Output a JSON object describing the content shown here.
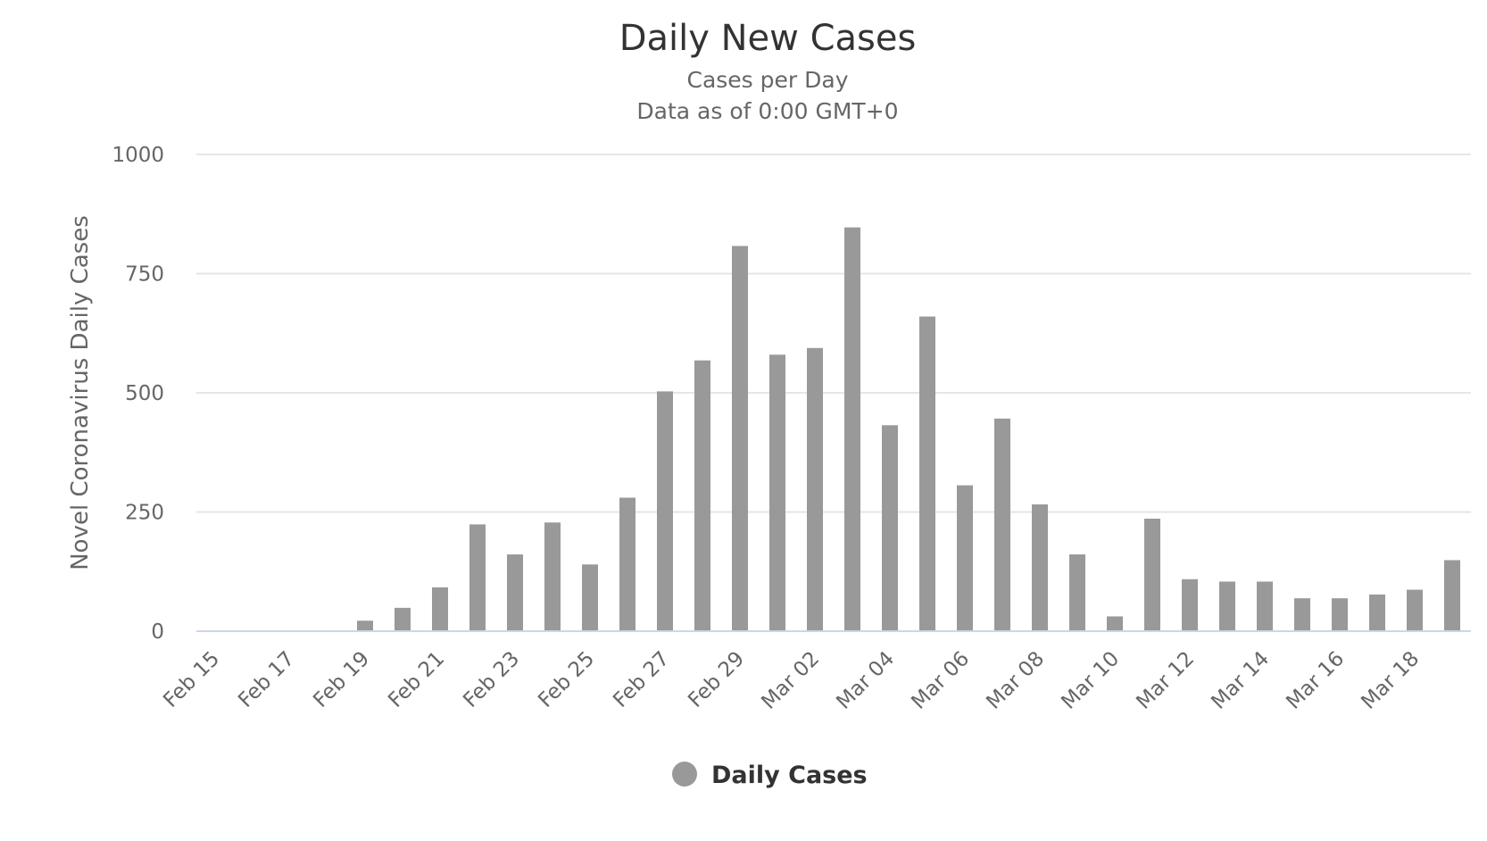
{
  "chart_data": {
    "type": "bar",
    "title": "Daily New Cases",
    "subtitle": [
      "Cases per Day",
      "Data as of 0:00 GMT+0"
    ],
    "ylabel": "Novel Coronavirus Daily Cases",
    "xlabel": "",
    "ylim": [
      0,
      1000
    ],
    "yticks": [
      "0",
      "250",
      "500",
      "750",
      "1000"
    ],
    "ytick_values": [
      0,
      250,
      500,
      750,
      1000
    ],
    "grid": true,
    "legend_position": "bottom-center",
    "bar_color": "#999999",
    "categories": [
      "Feb 15",
      "Feb 16",
      "Feb 17",
      "Feb 18",
      "Feb 19",
      "Feb 20",
      "Feb 21",
      "Feb 22",
      "Feb 23",
      "Feb 24",
      "Feb 25",
      "Feb 26",
      "Feb 27",
      "Feb 28",
      "Feb 29",
      "Mar 01",
      "Mar 02",
      "Mar 03",
      "Mar 04",
      "Mar 05",
      "Mar 06",
      "Mar 07",
      "Mar 08",
      "Mar 09",
      "Mar 10",
      "Mar 11",
      "Mar 12",
      "Mar 13",
      "Mar 14",
      "Mar 15",
      "Mar 16",
      "Mar 17",
      "Mar 18",
      "Mar 19"
    ],
    "tick_labels": [
      "Feb 15",
      "Feb 17",
      "Feb 19",
      "Feb 21",
      "Feb 23",
      "Feb 25",
      "Feb 27",
      "Feb 29",
      "Mar 02",
      "Mar 04",
      "Mar 06",
      "Mar 08",
      "Mar 10",
      "Mar 12",
      "Mar 14",
      "Mar 16",
      "Mar 18"
    ],
    "series": [
      {
        "name": "Daily Cases",
        "values": [
          0,
          0,
          0,
          0,
          22,
          49,
          92,
          224,
          161,
          228,
          140,
          280,
          503,
          568,
          808,
          580,
          594,
          847,
          432,
          660,
          306,
          446,
          266,
          161,
          31,
          236,
          109,
          104,
          104,
          69,
          69,
          77,
          87,
          149
        ]
      }
    ]
  }
}
